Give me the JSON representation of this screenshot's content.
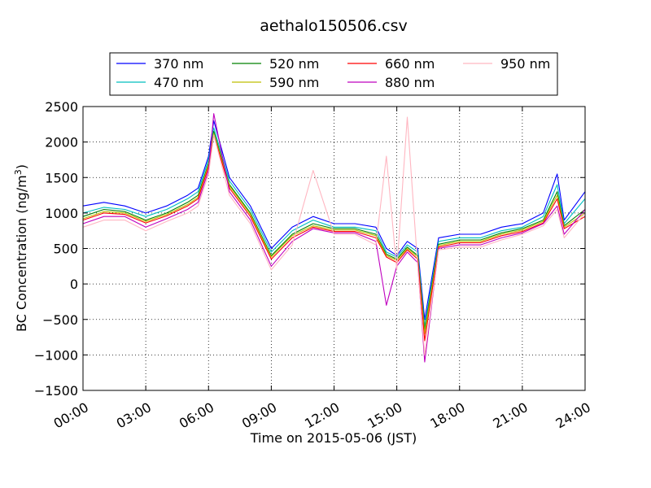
{
  "chart_data": {
    "type": "line",
    "title": "aethalo150506.csv",
    "xlabel": "Time on 2015-05-06 (JST)",
    "ylabel": "BC Concentration (ng/m",
    "ylabel_sup": "3",
    "ylabel_end": ")",
    "xlim": [
      "00:00",
      "24:00"
    ],
    "ylim": [
      -1500,
      2500
    ],
    "x_ticks": [
      "00:00",
      "03:00",
      "06:00",
      "09:00",
      "12:00",
      "15:00",
      "18:00",
      "21:00",
      "24:00"
    ],
    "y_ticks": [
      -1500,
      -1000,
      -500,
      0,
      500,
      1000,
      1500,
      2000,
      2500
    ],
    "grid": true,
    "legend_position": "top, above plot (4 columns)",
    "x": [
      "00:00",
      "01:00",
      "02:00",
      "03:00",
      "04:00",
      "05:00",
      "05:30",
      "06:00",
      "06:15",
      "07:00",
      "08:00",
      "09:00",
      "10:00",
      "11:00",
      "12:00",
      "13:00",
      "14:00",
      "14:30",
      "15:00",
      "15:30",
      "16:00",
      "16:20",
      "17:00",
      "18:00",
      "19:00",
      "20:00",
      "21:00",
      "22:00",
      "22:40",
      "23:00",
      "24:00"
    ],
    "series": [
      {
        "name": "370 nm",
        "color": "#0000ff",
        "values": [
          1100,
          1150,
          1100,
          1000,
          1100,
          1250,
          1350,
          1800,
          2300,
          1500,
          1100,
          500,
          800,
          950,
          850,
          850,
          800,
          500,
          400,
          600,
          500,
          -500,
          650,
          700,
          700,
          800,
          850,
          1000,
          1550,
          900,
          1300
        ]
      },
      {
        "name": "470 nm",
        "color": "#00bfbf",
        "values": [
          1000,
          1080,
          1050,
          950,
          1050,
          1200,
          1300,
          1750,
          2200,
          1450,
          1050,
          450,
          750,
          900,
          800,
          800,
          750,
          450,
          380,
          550,
          450,
          -600,
          600,
          650,
          650,
          750,
          800,
          950,
          1400,
          850,
          1200
        ]
      },
      {
        "name": "520 nm",
        "color": "#008000",
        "values": [
          950,
          1050,
          1020,
          900,
          1000,
          1150,
          1250,
          1700,
          2150,
          1400,
          1000,
          400,
          700,
          850,
          780,
          780,
          700,
          420,
          350,
          520,
          400,
          -650,
          560,
          620,
          620,
          720,
          780,
          900,
          1300,
          820,
          1050
        ]
      },
      {
        "name": "590 nm",
        "color": "#bfbf00",
        "values": [
          920,
          1020,
          1000,
          880,
          980,
          1120,
          1220,
          1680,
          2120,
          1380,
          980,
          380,
          680,
          820,
          760,
          760,
          680,
          400,
          330,
          500,
          380,
          -700,
          540,
          600,
          600,
          700,
          760,
          880,
          1250,
          800,
          1000
        ]
      },
      {
        "name": "660 nm",
        "color": "#ff0000",
        "values": [
          900,
          1000,
          980,
          860,
          960,
          1100,
          1200,
          1650,
          2100,
          1350,
          950,
          350,
          650,
          800,
          740,
          740,
          650,
          380,
          300,
          480,
          350,
          -800,
          520,
          580,
          580,
          680,
          740,
          860,
          1200,
          780,
          950
        ]
      },
      {
        "name": "880 nm",
        "color": "#bf00bf",
        "values": [
          850,
          950,
          950,
          800,
          920,
          1050,
          1150,
          1600,
          2400,
          1300,
          900,
          250,
          600,
          780,
          720,
          720,
          600,
          -300,
          250,
          450,
          300,
          -1100,
          500,
          550,
          550,
          650,
          720,
          850,
          1100,
          700,
          1050
        ]
      },
      {
        "name": "950 nm",
        "color": "#ffb6c1",
        "values": [
          800,
          900,
          900,
          750,
          880,
          1000,
          1100,
          1550,
          2100,
          1250,
          850,
          200,
          550,
          1600,
          700,
          700,
          550,
          1800,
          200,
          2350,
          250,
          -1000,
          480,
          520,
          520,
          620,
          700,
          820,
          1050,
          650,
          1000
        ]
      }
    ]
  }
}
